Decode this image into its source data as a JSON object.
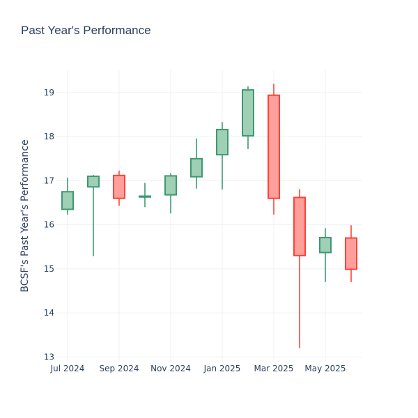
{
  "chart_data": {
    "type": "candlestick",
    "title": "Past Year's Performance",
    "xlabel": "",
    "ylabel": "BCSF's Past Year's Performance",
    "ylim": [
      12.88,
      19.52
    ],
    "y_ticks": [
      13,
      14,
      15,
      16,
      17,
      18,
      19
    ],
    "x_ticks": [
      "Jul 2024",
      "Sep 2024",
      "Nov 2024",
      "Jan 2025",
      "Mar 2025",
      "May 2025"
    ],
    "grid": true,
    "legend": false,
    "colors": {
      "increasing_line": "#3d9970",
      "increasing_fill": "#9fcfb5",
      "decreasing_line": "#ff4136",
      "decreasing_fill": "#ff9f9b",
      "grid": "#eef1f5",
      "text": "#2a3f5f"
    },
    "candles": [
      {
        "period": "Jul 2024",
        "open": 16.35,
        "high": 17.07,
        "low": 16.23,
        "close": 16.75
      },
      {
        "period": "Aug 2024",
        "open": 16.86,
        "high": 17.13,
        "low": 15.29,
        "close": 17.1
      },
      {
        "period": "Sep 2024",
        "open": 17.12,
        "high": 17.23,
        "low": 16.43,
        "close": 16.6
      },
      {
        "period": "Oct 2024",
        "open": 16.63,
        "high": 16.95,
        "low": 16.4,
        "close": 16.65
      },
      {
        "period": "Nov 2024",
        "open": 16.68,
        "high": 17.17,
        "low": 16.26,
        "close": 17.11
      },
      {
        "period": "Dec 2024",
        "open": 17.09,
        "high": 17.96,
        "low": 16.82,
        "close": 17.5
      },
      {
        "period": "Jan 2025",
        "open": 17.59,
        "high": 18.33,
        "low": 16.8,
        "close": 18.16
      },
      {
        "period": "Feb 2025",
        "open": 18.02,
        "high": 19.14,
        "low": 17.72,
        "close": 19.06
      },
      {
        "period": "Mar 2025",
        "open": 18.94,
        "high": 19.2,
        "low": 16.23,
        "close": 16.6
      },
      {
        "period": "Apr 2025",
        "open": 16.62,
        "high": 16.81,
        "low": 13.2,
        "close": 15.3
      },
      {
        "period": "May 2025",
        "open": 15.37,
        "high": 15.92,
        "low": 14.7,
        "close": 15.71
      },
      {
        "period": "Jun 2025",
        "open": 15.7,
        "high": 15.99,
        "low": 14.7,
        "close": 14.99
      }
    ]
  }
}
